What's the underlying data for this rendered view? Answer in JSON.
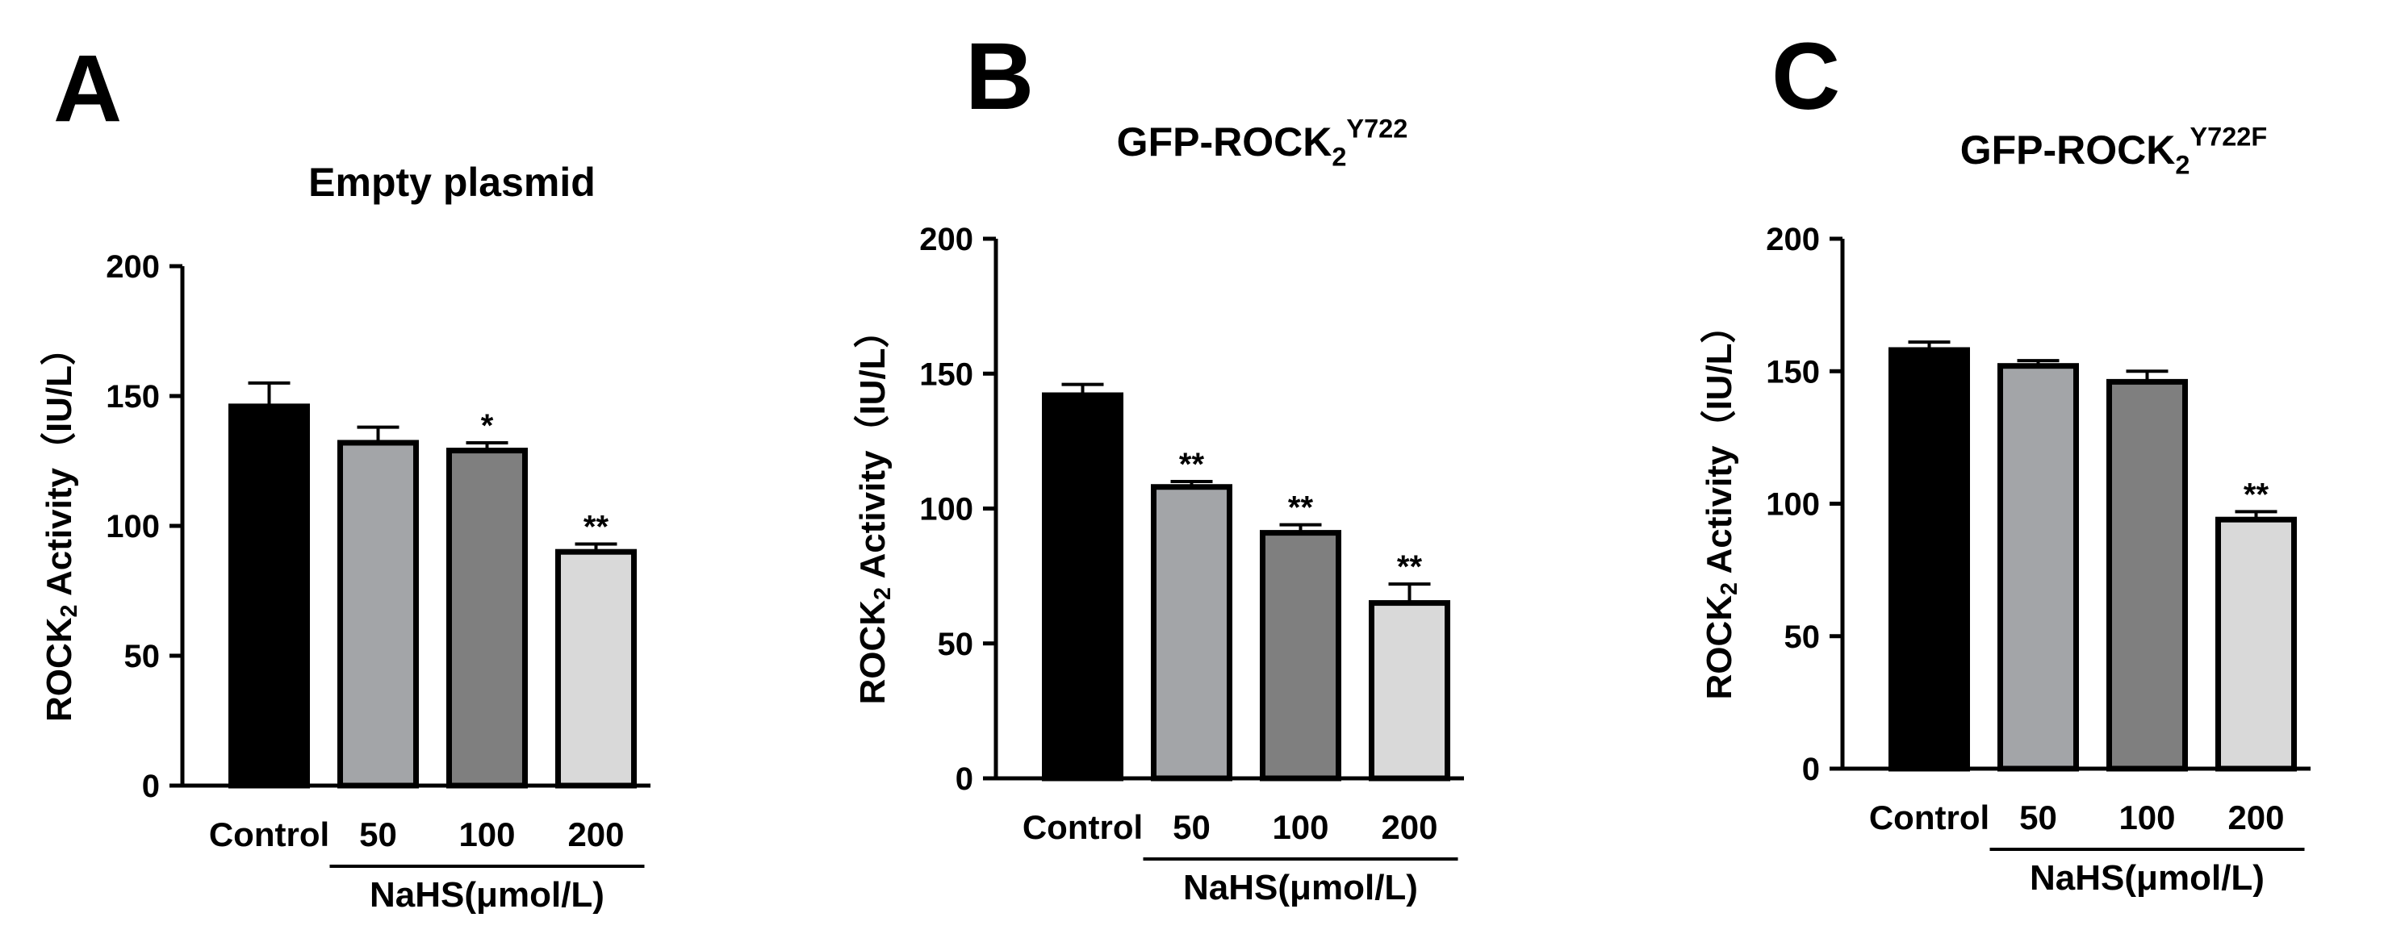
{
  "chart_data": [
    {
      "type": "bar",
      "panel": "A",
      "title": {
        "text": "Empty plasmid"
      },
      "ylabel": {
        "text": "ROCK",
        "sub": "2",
        "rest": " Activity（IU/L）"
      },
      "categories": [
        "Control",
        "50",
        "100",
        "200"
      ],
      "group_label": "NaHS(μmol/L)",
      "values": [
        146,
        132,
        129,
        90
      ],
      "errors": [
        9,
        6,
        3,
        3
      ],
      "annotations": [
        null,
        null,
        "*",
        "**"
      ],
      "colors": [
        "#000000",
        "#a3a5a8",
        "#7f7f7f",
        "#d9d9d9"
      ],
      "ylim": [
        0,
        200
      ],
      "yticks": [
        0,
        50,
        100,
        150,
        200
      ]
    },
    {
      "type": "bar",
      "panel": "B",
      "title": {
        "text": "GFP-ROCK",
        "sub": "2",
        "sup": "Y722"
      },
      "ylabel": {
        "text": "ROCK",
        "sub": "2",
        "rest": " Activity（IU/L）"
      },
      "categories": [
        "Control",
        "50",
        "100",
        "200"
      ],
      "group_label": "NaHS(μmol/L)",
      "values": [
        142,
        108,
        91,
        65
      ],
      "errors": [
        4,
        2,
        3,
        7
      ],
      "annotations": [
        null,
        "**",
        "**",
        "**"
      ],
      "colors": [
        "#000000",
        "#a3a5a8",
        "#7f7f7f",
        "#d9d9d9"
      ],
      "ylim": [
        0,
        200
      ],
      "yticks": [
        0,
        50,
        100,
        150,
        200
      ]
    },
    {
      "type": "bar",
      "panel": "C",
      "title": {
        "text": "GFP-ROCK",
        "sub": "2",
        "sup": "Y722F"
      },
      "ylabel": {
        "text": "ROCK",
        "sub": "2",
        "rest": " Activity（IU/L）"
      },
      "categories": [
        "Control",
        "50",
        "100",
        "200"
      ],
      "group_label": "NaHS(μmol/L)",
      "values": [
        158,
        152,
        146,
        94
      ],
      "errors": [
        3,
        2,
        4,
        3
      ],
      "annotations": [
        null,
        null,
        null,
        "**"
      ],
      "colors": [
        "#000000",
        "#a3a5a8",
        "#7f7f7f",
        "#d9d9d9"
      ],
      "ylim": [
        0,
        200
      ],
      "yticks": [
        0,
        50,
        100,
        150,
        200
      ]
    }
  ]
}
